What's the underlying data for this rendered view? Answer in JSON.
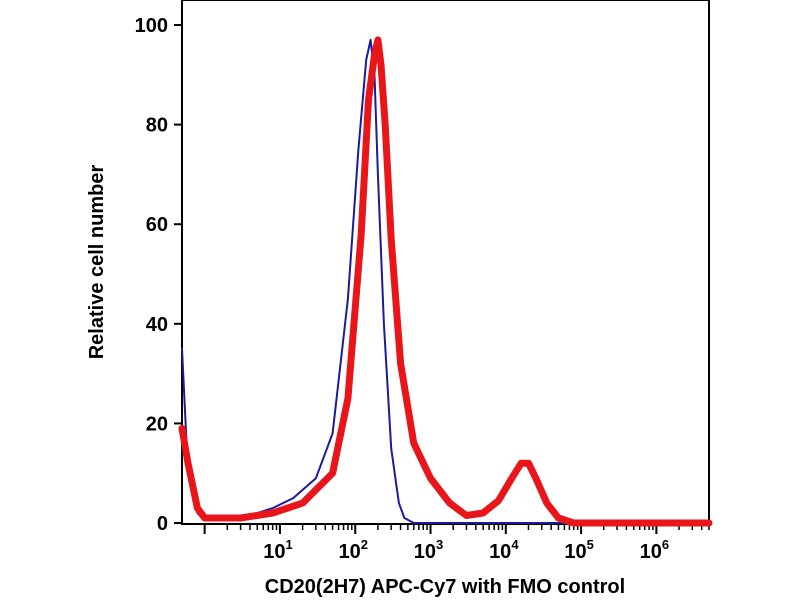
{
  "chart_data": {
    "type": "line",
    "title": "",
    "xlabel": "CD20(2H7) APC-Cy7 with FMO control",
    "ylabel": "Relative cell number",
    "xscale": "log10",
    "xlim": [
      0.5,
      5000000
    ],
    "ylim": [
      0,
      100
    ],
    "y_ticks": [
      0,
      20,
      40,
      60,
      80,
      100
    ],
    "x_ticks": [
      {
        "base": "10",
        "exp": "1",
        "value": 10
      },
      {
        "base": "10",
        "exp": "2",
        "value": 100
      },
      {
        "base": "10",
        "exp": "3",
        "value": 1000
      },
      {
        "base": "10",
        "exp": "4",
        "value": 10000
      },
      {
        "base": "10",
        "exp": "5",
        "value": 100000
      },
      {
        "base": "10",
        "exp": "6",
        "value": 1000000
      }
    ],
    "legend": "none",
    "series": [
      {
        "name": "FMO control",
        "color": "#1a1aa0",
        "x": [
          0.5,
          0.6,
          0.8,
          1,
          2,
          4,
          8,
          15,
          30,
          50,
          80,
          110,
          140,
          160,
          180,
          200,
          240,
          300,
          380,
          450,
          600,
          1000,
          5000000
        ],
        "y": [
          35,
          10,
          2,
          0.5,
          0.5,
          1.5,
          3,
          5,
          9,
          18,
          45,
          75,
          93,
          97,
          90,
          70,
          40,
          15,
          4,
          1,
          0,
          0,
          0
        ]
      },
      {
        "name": "CD20(2H7) APC-Cy7",
        "color": "#e8161b",
        "x": [
          0.5,
          0.6,
          0.8,
          1,
          3,
          8,
          20,
          50,
          80,
          120,
          150,
          180,
          200,
          220,
          250,
          300,
          400,
          600,
          1000,
          1800,
          3000,
          5000,
          8000,
          12000,
          16000,
          20000,
          25000,
          35000,
          50000,
          80000,
          120000,
          5000000
        ],
        "y": [
          19,
          12,
          3,
          1,
          1,
          2,
          4,
          10,
          25,
          58,
          85,
          94,
          97,
          92,
          80,
          57,
          32,
          16,
          9,
          4,
          1.5,
          2,
          4.5,
          9,
          12,
          12,
          9,
          4,
          1,
          0,
          0,
          0
        ]
      }
    ]
  }
}
